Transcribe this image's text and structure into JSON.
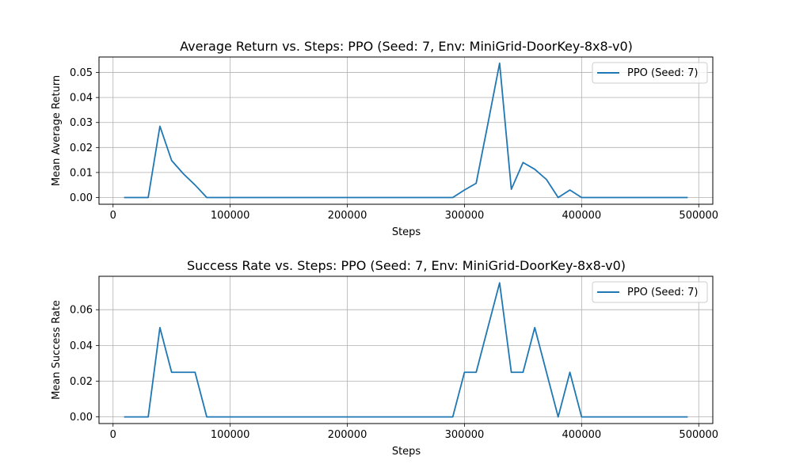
{
  "chart_data": [
    {
      "type": "line",
      "title": "Average Return vs. Steps: PPO (Seed: 7, Env: MiniGrid-DoorKey-8x8-v0)",
      "xlabel": "Steps",
      "ylabel": "Mean Average Return",
      "xlim": [
        -12000,
        512000
      ],
      "ylim": [
        -0.0027,
        0.0562
      ],
      "xticks": [
        0,
        100000,
        200000,
        300000,
        400000,
        500000
      ],
      "yticks": [
        0.0,
        0.01,
        0.02,
        0.03,
        0.04,
        0.05
      ],
      "ytick_labels": [
        "0.00",
        "0.01",
        "0.02",
        "0.03",
        "0.04",
        "0.05"
      ],
      "grid": true,
      "legend_position": "top-right",
      "series": [
        {
          "name": "PPO (Seed: 7)",
          "color": "#1f77b4",
          "x": [
            10000,
            20000,
            30000,
            40000,
            50000,
            60000,
            70000,
            80000,
            90000,
            100000,
            110000,
            120000,
            130000,
            140000,
            150000,
            160000,
            170000,
            180000,
            190000,
            200000,
            210000,
            220000,
            230000,
            240000,
            250000,
            260000,
            270000,
            280000,
            290000,
            300000,
            310000,
            320000,
            330000,
            340000,
            350000,
            360000,
            370000,
            380000,
            390000,
            400000,
            410000,
            420000,
            430000,
            440000,
            450000,
            460000,
            470000,
            480000,
            490000
          ],
          "y": [
            0,
            0,
            0,
            0.0285,
            0.0148,
            0.0095,
            0.005,
            0,
            0,
            0,
            0,
            0,
            0,
            0,
            0,
            0,
            0,
            0,
            0,
            0,
            0,
            0,
            0,
            0,
            0,
            0,
            0,
            0,
            0,
            0.003,
            0.0057,
            0.0295,
            0.0537,
            0.0033,
            0.014,
            0.0113,
            0.0072,
            0,
            0.003,
            0,
            0,
            0,
            0,
            0,
            0,
            0,
            0,
            0,
            0
          ]
        }
      ]
    },
    {
      "type": "line",
      "title": "Success Rate vs. Steps: PPO (Seed: 7, Env: MiniGrid-DoorKey-8x8-v0)",
      "xlabel": "Steps",
      "ylabel": "Mean Success Rate",
      "xlim": [
        -12000,
        512000
      ],
      "ylim": [
        -0.0037,
        0.0787
      ],
      "xticks": [
        0,
        100000,
        200000,
        300000,
        400000,
        500000
      ],
      "yticks": [
        0.0,
        0.02,
        0.04,
        0.06
      ],
      "ytick_labels": [
        "0.00",
        "0.02",
        "0.04",
        "0.06"
      ],
      "grid": true,
      "legend_position": "top-right",
      "series": [
        {
          "name": "PPO (Seed: 7)",
          "color": "#1f77b4",
          "x": [
            10000,
            20000,
            30000,
            40000,
            50000,
            60000,
            70000,
            80000,
            90000,
            100000,
            110000,
            120000,
            130000,
            140000,
            150000,
            160000,
            170000,
            180000,
            190000,
            200000,
            210000,
            220000,
            230000,
            240000,
            250000,
            260000,
            270000,
            280000,
            290000,
            300000,
            310000,
            320000,
            330000,
            340000,
            350000,
            360000,
            370000,
            380000,
            390000,
            400000,
            410000,
            420000,
            430000,
            440000,
            450000,
            460000,
            470000,
            480000,
            490000
          ],
          "y": [
            0,
            0,
            0,
            0.05,
            0.025,
            0.025,
            0.025,
            0,
            0,
            0,
            0,
            0,
            0,
            0,
            0,
            0,
            0,
            0,
            0,
            0,
            0,
            0,
            0,
            0,
            0,
            0,
            0,
            0,
            0,
            0.025,
            0.025,
            0.05,
            0.075,
            0.025,
            0.025,
            0.05,
            0.025,
            0,
            0.025,
            0,
            0,
            0,
            0,
            0,
            0,
            0,
            0,
            0,
            0
          ]
        }
      ]
    }
  ]
}
